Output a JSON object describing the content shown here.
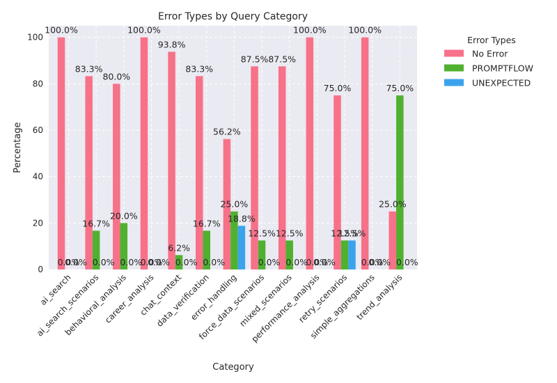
{
  "chart_data": {
    "type": "bar",
    "title": "Error Types by Query Category",
    "xlabel": "Category",
    "ylabel": "Percentage",
    "ylim": [
      0,
      105
    ],
    "yticks": [
      0,
      20,
      40,
      60,
      80,
      100
    ],
    "grid": true,
    "legend": {
      "title": "Error Types",
      "placement": "outside-top-right"
    },
    "categories": [
      "ai_search",
      "ai_search_scenarios",
      "behavioral_analysis",
      "career_analysis",
      "chat_context",
      "data_verification",
      "error_handling",
      "force_data_scenarios",
      "mixed_scenarios",
      "performance_analysis",
      "retry_scenarios",
      "simple_aggregations",
      "trend_analysis"
    ],
    "series": [
      {
        "name": "No Error",
        "color": "#f77189",
        "values": [
          100.0,
          83.3,
          80.0,
          100.0,
          93.8,
          83.3,
          56.2,
          87.5,
          87.5,
          100.0,
          75.0,
          100.0,
          25.0
        ]
      },
      {
        "name": "PROMPTFLOW",
        "color": "#50b131",
        "values": [
          0.0,
          16.7,
          20.0,
          0.0,
          6.2,
          16.7,
          25.0,
          12.5,
          12.5,
          0.0,
          12.5,
          0.0,
          75.0
        ]
      },
      {
        "name": "UNEXPECTED",
        "color": "#3ba3ec",
        "values": [
          0.0,
          0.0,
          0.0,
          0.0,
          0.0,
          0.0,
          18.8,
          0.0,
          0.0,
          0.0,
          12.5,
          0.0,
          0.0
        ]
      }
    ],
    "data_labels": [
      [
        "100.0%",
        "83.3%",
        "80.0%",
        "100.0%",
        "93.8%",
        "83.3%",
        "56.2%",
        "87.5%",
        "87.5%",
        "100.0%",
        "75.0%",
        "100.0%",
        "25.0%"
      ],
      [
        "0.0%",
        "16.7%",
        "20.0%",
        "0.0%",
        "6.2%",
        "16.7%",
        "25.0%",
        "12.5%",
        "12.5%",
        "0.0%",
        "12.5%",
        "0.0%",
        "75.0%"
      ],
      [
        "0.0%",
        "0.0%",
        "0.0%",
        "0.0%",
        "0.0%",
        "0.0%",
        "18.8%",
        "0.0%",
        "0.0%",
        "0.0%",
        "12.5%",
        "0.0%",
        "0.0%"
      ]
    ]
  }
}
